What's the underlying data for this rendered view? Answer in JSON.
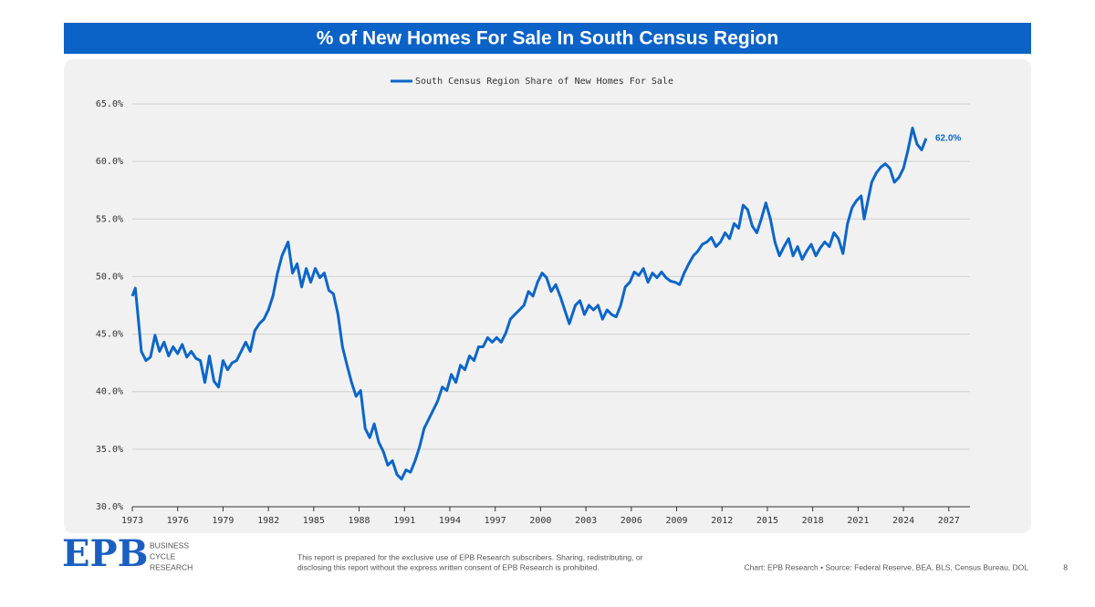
{
  "chart_data": {
    "type": "line",
    "title": "% of New Homes For Sale In South Census Region",
    "x": [
      1973.0,
      1973.2,
      1973.4,
      1973.6,
      1973.9,
      1974.2,
      1974.5,
      1974.8,
      1975.1,
      1975.4,
      1975.7,
      1976.0,
      1976.3,
      1976.6,
      1976.9,
      1977.2,
      1977.5,
      1977.8,
      1978.1,
      1978.4,
      1978.7,
      1979.0,
      1979.3,
      1979.6,
      1979.9,
      1980.2,
      1980.5,
      1980.8,
      1981.1,
      1981.4,
      1981.7,
      1982.0,
      1982.3,
      1982.6,
      1982.9,
      1983.3,
      1983.6,
      1983.9,
      1984.2,
      1984.5,
      1984.8,
      1985.1,
      1985.4,
      1985.7,
      1986.0,
      1986.3,
      1986.6,
      1986.9,
      1987.2,
      1987.5,
      1987.8,
      1988.1,
      1988.4,
      1988.7,
      1989.0,
      1989.3,
      1989.6,
      1989.9,
      1990.2,
      1990.5,
      1990.8,
      1991.1,
      1991.4,
      1991.7,
      1992.0,
      1992.3,
      1992.6,
      1992.9,
      1993.2,
      1993.5,
      1993.8,
      1994.1,
      1994.4,
      1994.7,
      1995.0,
      1995.3,
      1995.6,
      1995.9,
      1996.2,
      1996.5,
      1996.8,
      1997.1,
      1997.4,
      1997.7,
      1998.0,
      1998.3,
      1998.6,
      1998.9,
      1999.2,
      1999.5,
      1999.8,
      2000.1,
      2000.4,
      2000.7,
      2001.0,
      2001.3,
      2001.6,
      2001.9,
      2002.3,
      2002.6,
      2002.9,
      2003.2,
      2003.5,
      2003.8,
      2004.1,
      2004.4,
      2004.7,
      2005.0,
      2005.3,
      2005.6,
      2005.9,
      2006.2,
      2006.5,
      2006.8,
      2007.1,
      2007.4,
      2007.7,
      2008.0,
      2008.3,
      2008.6,
      2008.9,
      2009.2,
      2009.5,
      2009.8,
      2010.1,
      2010.4,
      2010.7,
      2011.0,
      2011.3,
      2011.6,
      2011.9,
      2012.2,
      2012.5,
      2012.8,
      2013.1,
      2013.4,
      2013.7,
      2014.0,
      2014.3,
      2014.6,
      2014.9,
      2015.2,
      2015.5,
      2015.8,
      2016.1,
      2016.4,
      2016.7,
      2017.0,
      2017.3,
      2017.6,
      2017.9,
      2018.2,
      2018.5,
      2018.8,
      2019.1,
      2019.4,
      2019.7,
      2020.0,
      2020.3,
      2020.6,
      2020.9,
      2021.2,
      2021.4,
      2021.9,
      2022.2,
      2022.5,
      2022.8,
      2023.1,
      2023.4,
      2023.7,
      2024.0,
      2024.3,
      2024.6,
      2024.9,
      2025.2,
      2025.5
    ],
    "series": [
      {
        "name": "South Census Region Share of New Homes For Sale",
        "color": "#0b66c9",
        "values": [
          48.3,
          49.0,
          46.3,
          43.5,
          42.7,
          43.0,
          44.9,
          43.5,
          44.3,
          43.1,
          43.9,
          43.3,
          44.1,
          43.0,
          43.5,
          42.9,
          42.7,
          40.8,
          43.1,
          40.9,
          40.4,
          42.7,
          41.9,
          42.5,
          42.7,
          43.5,
          44.3,
          43.5,
          45.3,
          45.9,
          46.3,
          47.1,
          48.3,
          50.3,
          51.8,
          53.0,
          50.3,
          51.1,
          49.1,
          50.7,
          49.5,
          50.7,
          49.9,
          50.3,
          48.8,
          48.5,
          46.7,
          43.9,
          42.3,
          40.8,
          39.6,
          40.1,
          36.8,
          36.0,
          37.2,
          35.6,
          34.8,
          33.6,
          34.0,
          32.8,
          32.4,
          33.2,
          33.0,
          34.0,
          35.2,
          36.8,
          37.6,
          38.4,
          39.2,
          40.4,
          40.1,
          41.5,
          40.8,
          42.3,
          41.9,
          43.1,
          42.7,
          43.9,
          43.9,
          44.7,
          44.3,
          44.7,
          44.3,
          45.1,
          46.3,
          46.7,
          47.1,
          47.5,
          48.7,
          48.3,
          49.5,
          50.3,
          49.9,
          48.7,
          49.3,
          48.3,
          47.1,
          45.9,
          47.5,
          47.9,
          46.7,
          47.5,
          47.1,
          47.5,
          46.3,
          47.1,
          46.7,
          46.5,
          47.5,
          49.1,
          49.5,
          50.4,
          50.1,
          50.7,
          49.5,
          50.3,
          49.9,
          50.4,
          49.9,
          49.6,
          49.5,
          49.3,
          50.3,
          51.1,
          51.8,
          52.2,
          52.8,
          53.0,
          53.4,
          52.6,
          53.0,
          53.8,
          53.3,
          54.6,
          54.2,
          56.2,
          55.8,
          54.4,
          53.8,
          55.0,
          56.4,
          55.0,
          53.0,
          51.8,
          52.6,
          53.3,
          51.8,
          52.6,
          51.5,
          52.2,
          52.8,
          51.8,
          52.5,
          53.0,
          52.6,
          53.8,
          53.3,
          52.0,
          54.6,
          56.0,
          56.6,
          57.0,
          55.0,
          58.2,
          59.0,
          59.5,
          59.8,
          59.4,
          58.2,
          58.6,
          59.4,
          61.0,
          62.9,
          61.5,
          61.0,
          62.0
        ]
      }
    ],
    "annotation": "62.0%",
    "xlim": [
      1973,
      2028.4
    ],
    "xticks": [
      1973,
      1976,
      1979,
      1982,
      1985,
      1988,
      1991,
      1994,
      1997,
      2000,
      2003,
      2006,
      2009,
      2012,
      2015,
      2018,
      2021,
      2024,
      2027
    ],
    "ylim": [
      30,
      65
    ],
    "yticks": [
      {
        "value": 30,
        "label": "30.0%"
      },
      {
        "value": 35,
        "label": "35.0%"
      },
      {
        "value": 40,
        "label": "40.0%"
      },
      {
        "value": 45,
        "label": "45.0%"
      },
      {
        "value": 50,
        "label": "50.0%"
      },
      {
        "value": 55,
        "label": "55.0%"
      },
      {
        "value": 60,
        "label": "60.0%"
      },
      {
        "value": 65,
        "label": "65.0%"
      }
    ],
    "grid": true,
    "legend": "top"
  },
  "footer": {
    "logo": "EPB",
    "brand": [
      "BUSINESS",
      "CYCLE",
      "RESEARCH"
    ],
    "disclaimer": [
      "This report is prepared for the exclusive use of EPB Research subscribers. Sharing, redistributing, or",
      "disclosing this report without the express written consent of EPB Research is prohibited."
    ],
    "source": "Chart: EPB Research  •  Source: Federal Reserve, BEA, BLS, Census Bureau, DOL",
    "page": "8"
  }
}
